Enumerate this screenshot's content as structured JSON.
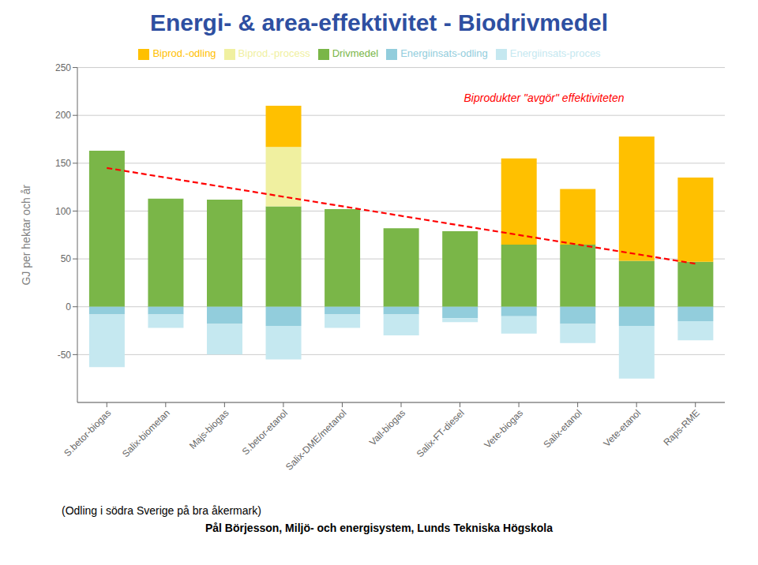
{
  "chart_data": {
    "type": "bar",
    "title": "Energi- & area-effektivitet - Biodrivmedel",
    "ylabel": "GJ per hektar och år",
    "footnotes": [
      "(Odling i södra Sverige på bra åkermark)",
      "Pål Börjesson, Miljö- och energisystem, Lunds Tekniska Högskola"
    ],
    "annotation": {
      "text": "Biprodukter \"avgör\" effektiviteten",
      "x": "Salix-FT-diesel",
      "y": 218,
      "color": "red"
    },
    "categories": [
      "S.betor-biogas",
      "Salix-biometan",
      "Majs-biogas",
      "S.betor-etanol",
      "Salix-DME/metanol",
      "Vall-biogas",
      "Salix-FT-diesel",
      "Vete-biogas",
      "Salix-etanol",
      "Vete-etanol",
      "Raps-RME"
    ],
    "series": [
      {
        "name": "Drivmedel",
        "color": "#7ab648",
        "values": [
          163,
          113,
          112,
          105,
          102,
          82,
          79,
          65,
          65,
          48,
          47
        ]
      },
      {
        "name": "Biprod.-process",
        "color": "#f0f0a0",
        "values": [
          0,
          0,
          0,
          62,
          0,
          0,
          0,
          0,
          0,
          0,
          0
        ]
      },
      {
        "name": "Biprod.-odling",
        "color": "#ffc000",
        "values": [
          0,
          0,
          0,
          43,
          0,
          0,
          0,
          90,
          58,
          130,
          88
        ]
      },
      {
        "name": "Energiinsats-odling",
        "color": "#92cddc",
        "values": [
          -8,
          -8,
          -18,
          -20,
          -8,
          -8,
          -12,
          -10,
          -18,
          -20,
          -15
        ]
      },
      {
        "name": "Energiinsats-proces",
        "color": "#c5e8f0",
        "values": [
          -55,
          -14,
          -32,
          -35,
          -14,
          -22,
          -4,
          -18,
          -20,
          -55,
          -20
        ]
      }
    ],
    "dashed_line": {
      "x": [
        "S.betor-biogas",
        "Raps-RME"
      ],
      "y": [
        145,
        45
      ],
      "color": "red",
      "line_style": "dashed"
    },
    "ylim": [
      -100,
      250
    ],
    "yticks": [
      -50,
      0,
      50,
      100,
      150,
      200,
      250
    ],
    "stacked": true,
    "grid": true,
    "legend": "top"
  }
}
